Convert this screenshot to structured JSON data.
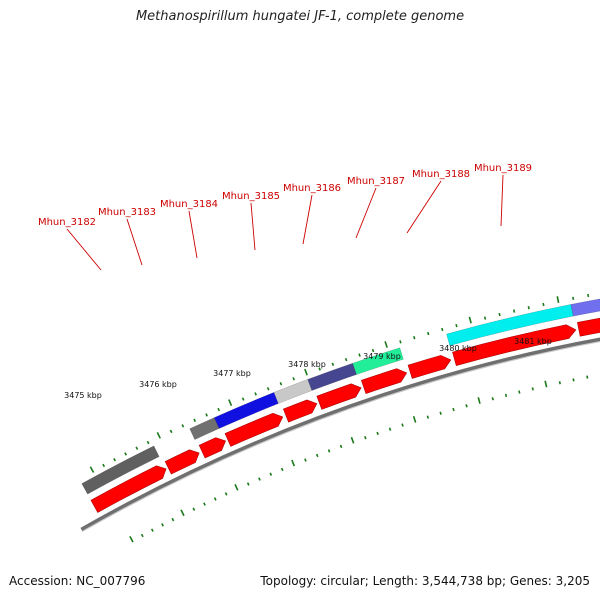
{
  "title": "Methanospirillum hungatei JF-1, complete genome",
  "footer": {
    "accession": "Accession: NC_007796",
    "summary": "Topology: circular; Length: 3,544,738 bp; Genes: 3,205"
  },
  "colors": {
    "cds_red": "#ff0000",
    "backbone": "#8c8c8c",
    "tick_green": "#1a7a1a",
    "label_red": "#cc0000"
  },
  "gene_labels": [
    "Mhun_3182",
    "Mhun_3183",
    "Mhun_3184",
    "Mhun_3185",
    "Mhun_3186",
    "Mhun_3187",
    "Mhun_3188",
    "Mhun_3189"
  ],
  "ruler_labels": [
    "3475 kbp",
    "3476 kbp",
    "3477 kbp",
    "3478 kbp",
    "3479 kbp",
    "3480 kbp",
    "3481 kbp"
  ],
  "functional_blocks": [
    {
      "color": "#606060"
    },
    {
      "color": "#707070"
    },
    {
      "color": "#1010e0"
    },
    {
      "color": "#c8c8c8"
    },
    {
      "color": "#454590"
    },
    {
      "color": "#22ee99"
    },
    {
      "color": "#00eeee"
    },
    {
      "color": "#7070ee"
    }
  ]
}
